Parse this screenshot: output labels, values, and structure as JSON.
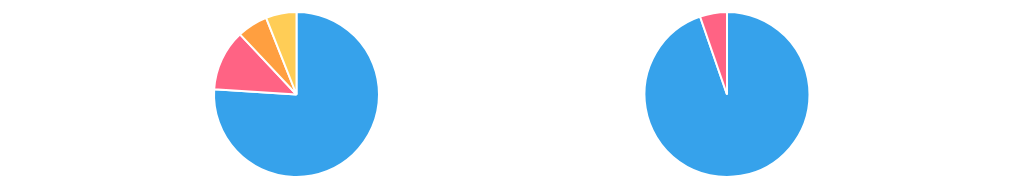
{
  "chart_data": [
    {
      "type": "pie",
      "values": [
        76,
        12,
        6,
        6
      ]
    },
    {
      "type": "pie",
      "values": [
        94.7,
        5.3
      ]
    }
  ]
}
